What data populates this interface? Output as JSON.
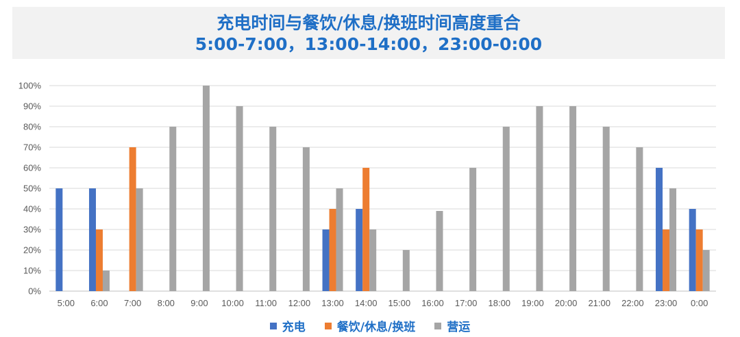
{
  "title_line1": "充电时间与餐饮/休息/换班时间高度重合",
  "title_line2": "5:00-7:00，13:00-14:00，23:00-0:00",
  "chart_data": {
    "type": "bar",
    "categories": [
      "5:00",
      "6:00",
      "7:00",
      "8:00",
      "9:00",
      "10:00",
      "11:00",
      "12:00",
      "13:00",
      "14:00",
      "15:00",
      "16:00",
      "17:00",
      "18:00",
      "19:00",
      "20:00",
      "21:00",
      "22:00",
      "23:00",
      "0:00"
    ],
    "series": [
      {
        "name": "充电",
        "color": "#4472c4",
        "values": [
          50,
          50,
          0,
          0,
          0,
          0,
          0,
          0,
          30,
          40,
          0,
          0,
          0,
          0,
          0,
          0,
          0,
          0,
          60,
          40
        ]
      },
      {
        "name": "餐饮/休息/换班",
        "color": "#ed7d31",
        "values": [
          0,
          30,
          70,
          0,
          0,
          0,
          0,
          0,
          40,
          60,
          0,
          0,
          0,
          0,
          0,
          0,
          0,
          0,
          30,
          30
        ]
      },
      {
        "name": "营运",
        "color": "#a5a5a5",
        "values": [
          0,
          10,
          50,
          80,
          100,
          90,
          80,
          70,
          50,
          30,
          20,
          39,
          60,
          80,
          90,
          90,
          80,
          70,
          50,
          20
        ]
      }
    ],
    "y_ticks": [
      "0%",
      "10%",
      "20%",
      "30%",
      "40%",
      "50%",
      "60%",
      "70%",
      "80%",
      "90%",
      "100%"
    ],
    "ylim": [
      0,
      100
    ],
    "grid": true,
    "legend_position": "bottom"
  }
}
